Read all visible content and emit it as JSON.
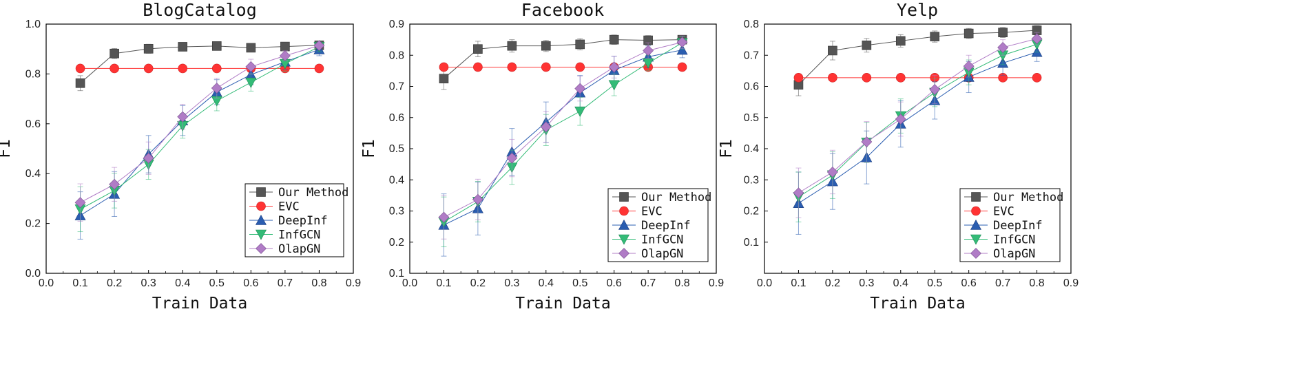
{
  "chart_data": [
    {
      "type": "line",
      "title": "BlogCatalog",
      "xlabel": "Train Data",
      "ylabel": "F1",
      "xlim": [
        0.0,
        0.9
      ],
      "ylim": [
        0.0,
        1.0
      ],
      "x_ticks": [
        "0.0",
        "0.1",
        "0.2",
        "0.3",
        "0.4",
        "0.5",
        "0.6",
        "0.7",
        "0.8",
        "0.9"
      ],
      "y_ticks": [
        "0.0",
        "0.2",
        "0.4",
        "0.6",
        "0.8",
        "1.0"
      ],
      "legend_position": "bottom-right",
      "x": [
        0.1,
        0.2,
        0.3,
        0.4,
        0.5,
        0.6,
        0.7,
        0.8
      ],
      "series": [
        {
          "name": "Our Method",
          "color": "#555555",
          "marker": "square",
          "values": [
            0.763,
            0.882,
            0.901,
            0.909,
            0.912,
            0.905,
            0.91,
            0.915
          ],
          "errors": [
            0.03,
            0.02,
            0.018,
            0.016,
            0.015,
            0.015,
            0.013,
            0.01
          ]
        },
        {
          "name": "EVC",
          "color": "#ff3333",
          "marker": "circle",
          "values": [
            0.822,
            0.822,
            0.822,
            0.822,
            0.822,
            0.822,
            0.822,
            0.822
          ],
          "errors": [
            0,
            0,
            0,
            0,
            0,
            0,
            0,
            0
          ]
        },
        {
          "name": "DeepInf",
          "color": "#2a5db0",
          "marker": "triangle-up",
          "values": [
            0.232,
            0.318,
            0.478,
            0.613,
            0.727,
            0.797,
            0.849,
            0.898
          ],
          "errors": [
            0.095,
            0.09,
            0.075,
            0.06,
            0.05,
            0.04,
            0.03,
            0.025
          ]
        },
        {
          "name": "InfGCN",
          "color": "#33bb77",
          "marker": "triangle-down",
          "values": [
            0.257,
            0.332,
            0.437,
            0.592,
            0.692,
            0.766,
            0.841,
            0.909
          ],
          "errors": [
            0.09,
            0.07,
            0.06,
            0.05,
            0.04,
            0.035,
            0.03,
            0.02
          ]
        },
        {
          "name": "OlapGN",
          "color": "#b07cc6",
          "marker": "diamond",
          "values": [
            0.284,
            0.357,
            0.462,
            0.628,
            0.743,
            0.829,
            0.873,
            0.914
          ],
          "errors": [
            0.075,
            0.068,
            0.065,
            0.05,
            0.04,
            0.03,
            0.02,
            0.01
          ]
        }
      ]
    },
    {
      "type": "line",
      "title": "Facebook",
      "xlabel": "Train Data",
      "ylabel": "F1",
      "xlim": [
        0.0,
        0.9
      ],
      "ylim": [
        0.1,
        0.9
      ],
      "x_ticks": [
        "0.0",
        "0.1",
        "0.2",
        "0.3",
        "0.4",
        "0.5",
        "0.6",
        "0.7",
        "0.8",
        "0.9"
      ],
      "y_ticks": [
        "0.1",
        "0.2",
        "0.3",
        "0.4",
        "0.5",
        "0.6",
        "0.7",
        "0.8",
        "0.9"
      ],
      "legend_position": "bottom-right",
      "x": [
        0.1,
        0.2,
        0.3,
        0.4,
        0.5,
        0.6,
        0.7,
        0.8
      ],
      "series": [
        {
          "name": "Our Method",
          "color": "#555555",
          "marker": "square",
          "values": [
            0.725,
            0.82,
            0.83,
            0.83,
            0.835,
            0.85,
            0.848,
            0.85
          ],
          "errors": [
            0.035,
            0.025,
            0.02,
            0.018,
            0.018,
            0.015,
            0.015,
            0.012
          ]
        },
        {
          "name": "EVC",
          "color": "#ff3333",
          "marker": "circle",
          "values": [
            0.762,
            0.762,
            0.762,
            0.762,
            0.762,
            0.762,
            0.762,
            0.762
          ],
          "errors": [
            0,
            0,
            0,
            0,
            0,
            0,
            0,
            0
          ]
        },
        {
          "name": "DeepInf",
          "color": "#2a5db0",
          "marker": "triangle-up",
          "values": [
            0.255,
            0.308,
            0.49,
            0.585,
            0.68,
            0.752,
            0.795,
            0.817
          ],
          "errors": [
            0.1,
            0.085,
            0.075,
            0.065,
            0.055,
            0.045,
            0.035,
            0.025
          ]
        },
        {
          "name": "InfGCN",
          "color": "#33bb77",
          "marker": "triangle-down",
          "values": [
            0.265,
            0.33,
            0.44,
            0.56,
            0.62,
            0.705,
            0.775,
            0.84
          ],
          "errors": [
            0.08,
            0.065,
            0.055,
            0.05,
            0.045,
            0.035,
            0.025,
            0.02
          ]
        },
        {
          "name": "OlapGN",
          "color": "#b07cc6",
          "marker": "diamond",
          "values": [
            0.28,
            0.337,
            0.47,
            0.57,
            0.693,
            0.762,
            0.815,
            0.842
          ],
          "errors": [
            0.07,
            0.065,
            0.06,
            0.05,
            0.04,
            0.035,
            0.025,
            0.02
          ]
        }
      ]
    },
    {
      "type": "line",
      "title": "Yelp",
      "xlabel": "Train Data",
      "ylabel": "F1",
      "xlim": [
        0.0,
        0.9
      ],
      "ylim": [
        0.0,
        0.8
      ],
      "x_ticks": [
        "0.0",
        "0.1",
        "0.2",
        "0.3",
        "0.4",
        "0.5",
        "0.6",
        "0.7",
        "0.8",
        "0.9"
      ],
      "y_ticks": [
        "0.1",
        "0.2",
        "0.3",
        "0.4",
        "0.5",
        "0.6",
        "0.7",
        "0.8"
      ],
      "legend_position": "bottom-right",
      "x": [
        0.1,
        0.2,
        0.3,
        0.4,
        0.5,
        0.6,
        0.7,
        0.8
      ],
      "series": [
        {
          "name": "Our Method",
          "color": "#555555",
          "marker": "square",
          "values": [
            0.605,
            0.715,
            0.732,
            0.746,
            0.76,
            0.77,
            0.773,
            0.78
          ],
          "errors": [
            0.035,
            0.03,
            0.022,
            0.02,
            0.018,
            0.016,
            0.016,
            0.015
          ]
        },
        {
          "name": "EVC",
          "color": "#ff3333",
          "marker": "circle",
          "values": [
            0.628,
            0.628,
            0.628,
            0.628,
            0.628,
            0.628,
            0.628,
            0.628
          ],
          "errors": [
            0,
            0,
            0,
            0,
            0,
            0,
            0,
            0
          ]
        },
        {
          "name": "DeepInf",
          "color": "#2a5db0",
          "marker": "triangle-up",
          "values": [
            0.225,
            0.295,
            0.372,
            0.48,
            0.555,
            0.63,
            0.675,
            0.71
          ],
          "errors": [
            0.1,
            0.09,
            0.085,
            0.075,
            0.06,
            0.05,
            0.04,
            0.03
          ]
        },
        {
          "name": "InfGCN",
          "color": "#33bb77",
          "marker": "triangle-down",
          "values": [
            0.245,
            0.315,
            0.42,
            0.505,
            0.58,
            0.645,
            0.7,
            0.735
          ],
          "errors": [
            0.08,
            0.075,
            0.065,
            0.055,
            0.045,
            0.04,
            0.03,
            0.025
          ]
        },
        {
          "name": "OlapGN",
          "color": "#b07cc6",
          "marker": "diamond",
          "values": [
            0.258,
            0.325,
            0.422,
            0.495,
            0.59,
            0.665,
            0.725,
            0.753
          ],
          "errors": [
            0.08,
            0.07,
            0.065,
            0.055,
            0.045,
            0.035,
            0.025,
            0.02
          ]
        }
      ]
    }
  ]
}
